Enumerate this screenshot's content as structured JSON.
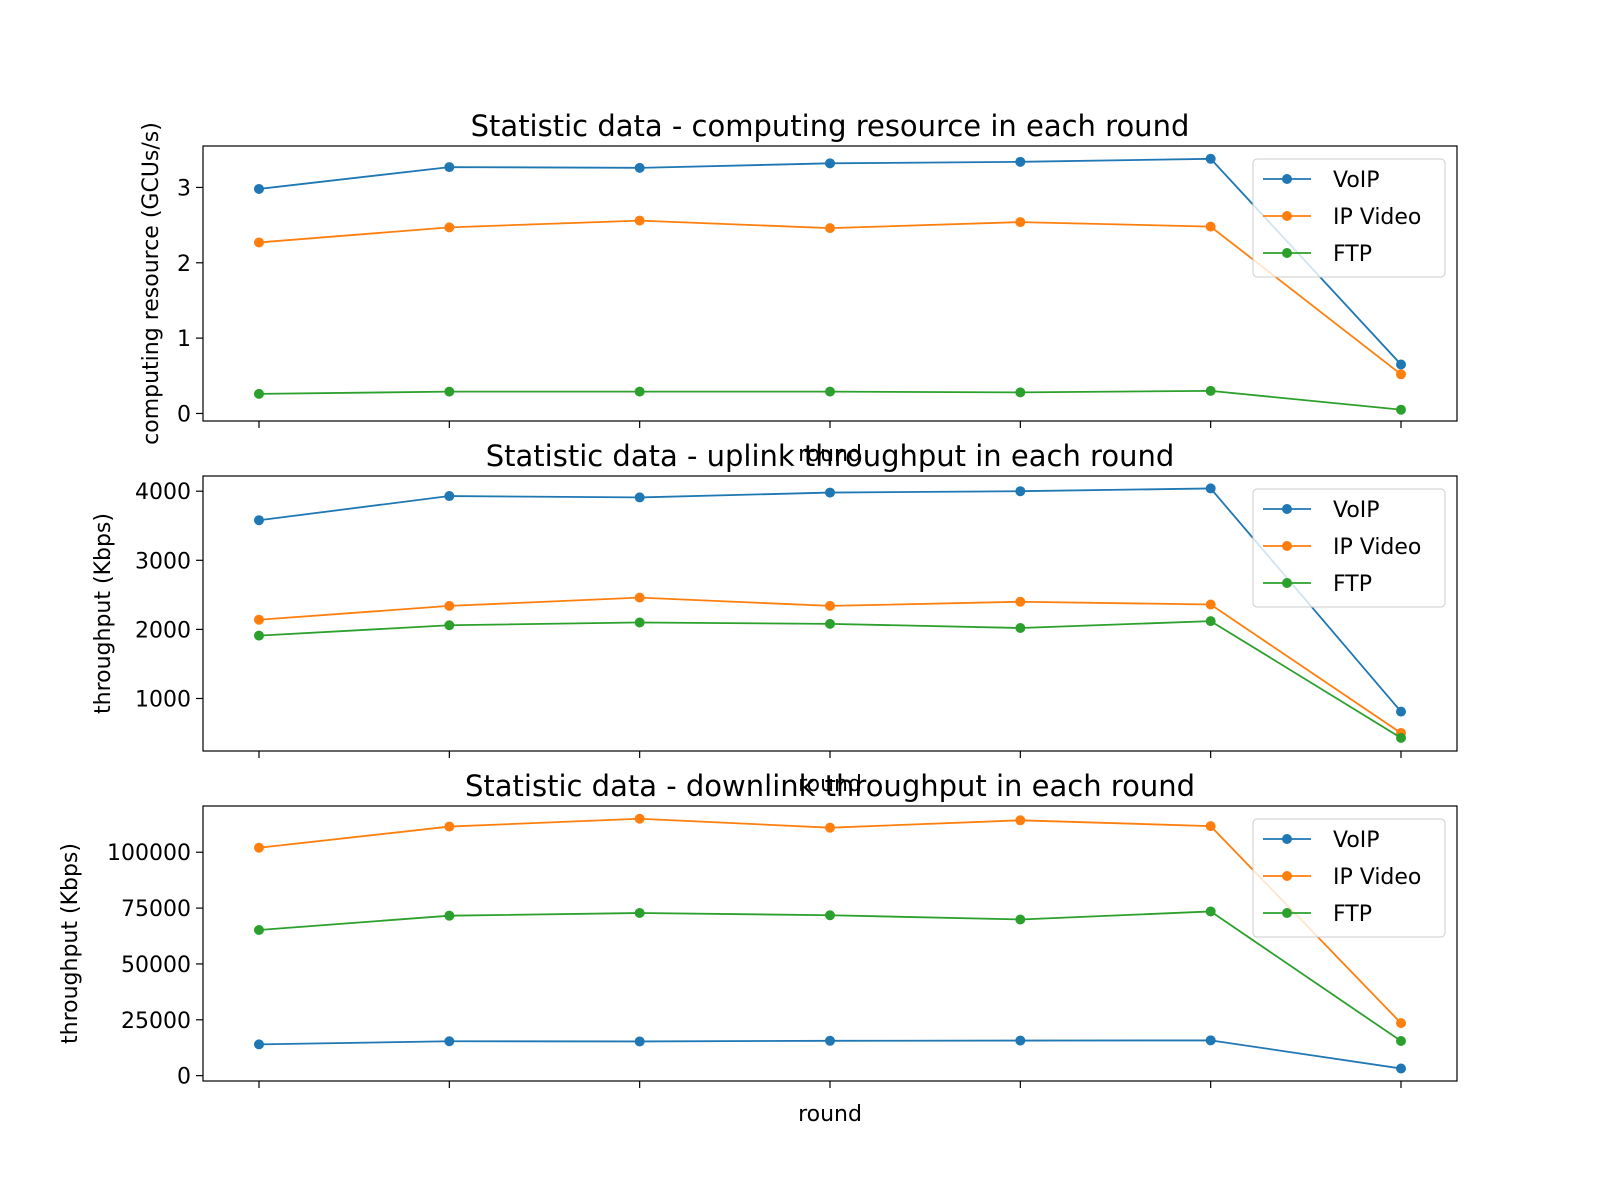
{
  "chart_data": [
    {
      "type": "line",
      "title": "Statistic data - computing resource in each round",
      "xlabel": "round",
      "ylabel": "computing resource (GCUs/s)",
      "x": [
        1,
        2,
        3,
        4,
        5,
        6,
        7
      ],
      "ylim": [
        -0.1,
        3.55
      ],
      "yticks": [
        0,
        1,
        2,
        3
      ],
      "grid": false,
      "legend_position": "top-right",
      "series": [
        {
          "name": "VoIP",
          "color": "#1f77b4",
          "values": [
            2.98,
            3.27,
            3.26,
            3.32,
            3.34,
            3.38,
            0.65
          ]
        },
        {
          "name": "IP Video",
          "color": "#ff7f0e",
          "values": [
            2.27,
            2.47,
            2.56,
            2.46,
            2.54,
            2.48,
            0.52
          ]
        },
        {
          "name": "FTP",
          "color": "#2ca02c",
          "values": [
            0.26,
            0.29,
            0.29,
            0.29,
            0.28,
            0.3,
            0.05
          ]
        }
      ]
    },
    {
      "type": "line",
      "title": "Statistic data - uplink throughput in each round",
      "xlabel": "round",
      "ylabel": "throughput (Kbps)",
      "x": [
        1,
        2,
        3,
        4,
        5,
        6,
        7
      ],
      "ylim": [
        240,
        4220
      ],
      "yticks": [
        1000,
        2000,
        3000,
        4000
      ],
      "grid": false,
      "legend_position": "top-right",
      "series": [
        {
          "name": "VoIP",
          "color": "#1f77b4",
          "values": [
            3580,
            3930,
            3910,
            3980,
            4000,
            4040,
            810
          ]
        },
        {
          "name": "IP Video",
          "color": "#ff7f0e",
          "values": [
            2140,
            2340,
            2460,
            2340,
            2400,
            2360,
            500
          ]
        },
        {
          "name": "FTP",
          "color": "#2ca02c",
          "values": [
            1910,
            2060,
            2100,
            2080,
            2020,
            2120,
            430
          ]
        }
      ]
    },
    {
      "type": "line",
      "title": "Statistic data - downlink throughput in each round",
      "xlabel": "round",
      "ylabel": "throughput (Kbps)",
      "x": [
        1,
        2,
        3,
        4,
        5,
        6,
        7
      ],
      "ylim": [
        -2400,
        120700
      ],
      "yticks": [
        0,
        25000,
        50000,
        75000,
        100000
      ],
      "grid": false,
      "legend_position": "top-right",
      "series": [
        {
          "name": "VoIP",
          "color": "#1f77b4",
          "values": [
            14000,
            15400,
            15300,
            15600,
            15700,
            15800,
            3200
          ]
        },
        {
          "name": "IP Video",
          "color": "#ff7f0e",
          "values": [
            102000,
            111500,
            115000,
            111000,
            114300,
            111700,
            23500
          ]
        },
        {
          "name": "FTP",
          "color": "#2ca02c",
          "values": [
            65200,
            71600,
            72800,
            71800,
            69900,
            73500,
            15500
          ]
        }
      ]
    }
  ]
}
